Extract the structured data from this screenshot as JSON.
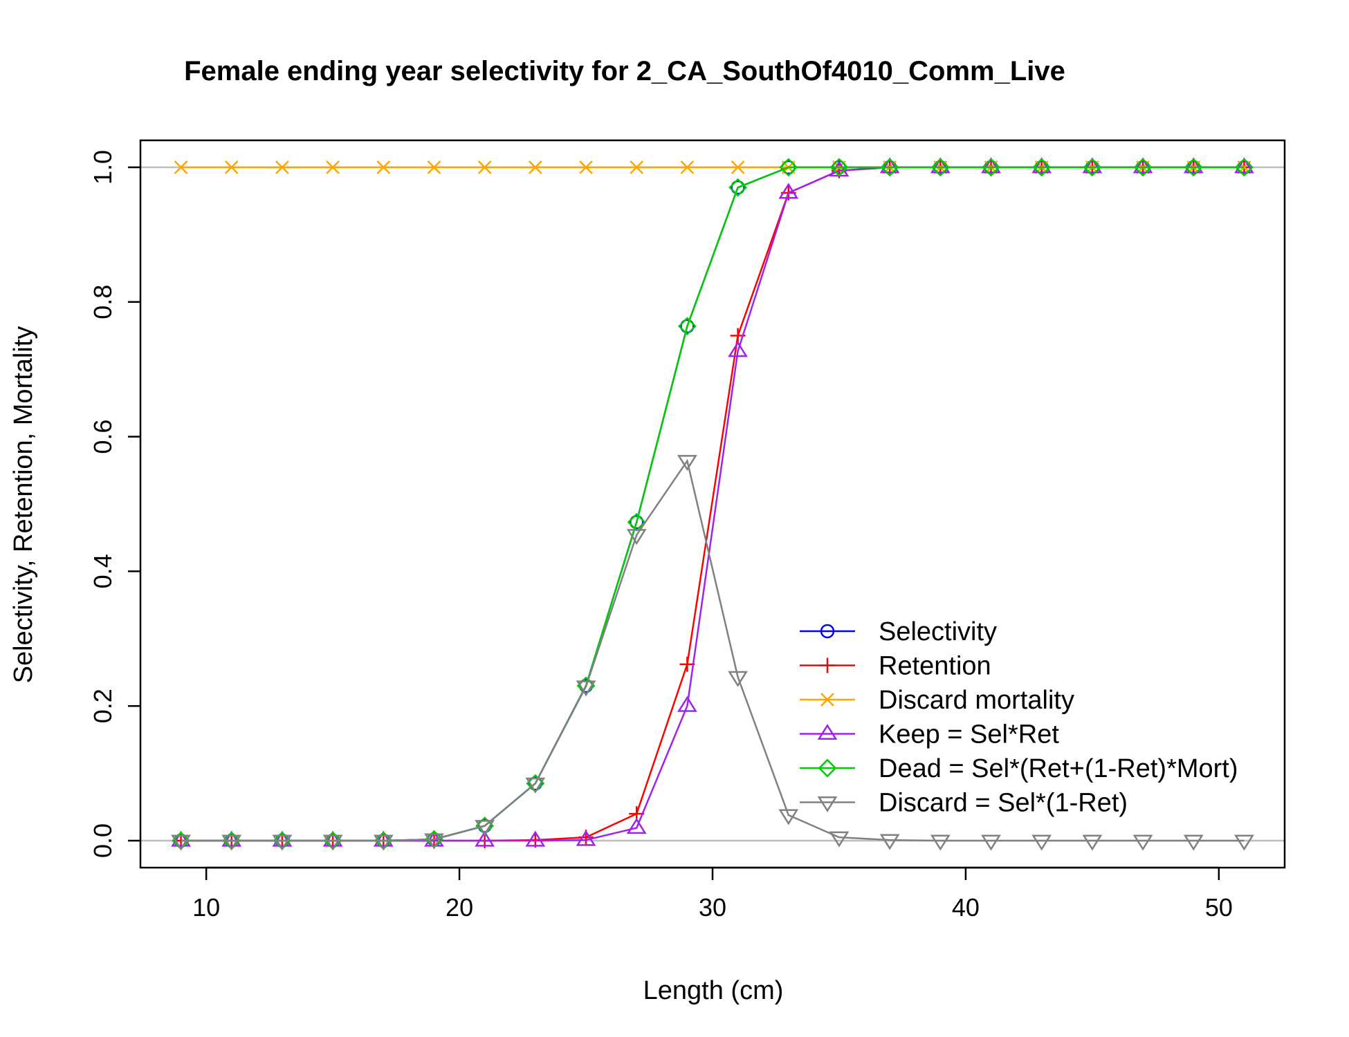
{
  "chart_data": {
    "type": "line",
    "title": "Female ending year selectivity for 2_CA_SouthOf4010_Comm_Live",
    "xlabel": "Length (cm)",
    "ylabel": "Selectivity, Retention, Mortality",
    "xlim": [
      7.4,
      52.6
    ],
    "ylim": [
      -0.04,
      1.04
    ],
    "x_ticks": [
      10,
      20,
      30,
      40,
      50
    ],
    "y_ticks": [
      0.0,
      0.2,
      0.4,
      0.6,
      0.8,
      1.0
    ],
    "x_tick_labels": [
      "10",
      "20",
      "30",
      "40",
      "50"
    ],
    "y_tick_labels": [
      "0.0",
      "0.2",
      "0.4",
      "0.6",
      "0.8",
      "1.0"
    ],
    "reference_lines": [
      0,
      1
    ],
    "legend_position": "bottom-right",
    "x": [
      9,
      11,
      13,
      15,
      17,
      19,
      21,
      23,
      25,
      27,
      29,
      31,
      33,
      35,
      37,
      39,
      41,
      43,
      45,
      47,
      49,
      51
    ],
    "series": [
      {
        "name": "Selectivity",
        "color": "#0000ff",
        "marker": "circle",
        "values": [
          0,
          0,
          0,
          0,
          0,
          0.002,
          0.022,
          0.085,
          0.23,
          0.473,
          0.764,
          0.97,
          1,
          1,
          1,
          1,
          1,
          1,
          1,
          1,
          1,
          1
        ]
      },
      {
        "name": "Retention",
        "color": "#ff0000",
        "marker": "plus",
        "values": [
          0,
          0,
          0,
          0,
          0,
          0,
          0,
          0.001,
          0.005,
          0.04,
          0.262,
          0.75,
          0.962,
          0.995,
          1,
          1,
          1,
          1,
          1,
          1,
          1,
          1
        ]
      },
      {
        "name": "Discard mortality",
        "color": "#ffa500",
        "marker": "x",
        "values": [
          1,
          1,
          1,
          1,
          1,
          1,
          1,
          1,
          1,
          1,
          1,
          1,
          1,
          1,
          1,
          1,
          1,
          1,
          1,
          1,
          1,
          1
        ]
      },
      {
        "name": "Keep = Sel*Ret",
        "color": "#a020f0",
        "marker": "triangle-up",
        "values": [
          0,
          0,
          0,
          0,
          0,
          0,
          0,
          0,
          0.001,
          0.019,
          0.2,
          0.727,
          0.962,
          0.995,
          1,
          1,
          1,
          1,
          1,
          1,
          1,
          1
        ]
      },
      {
        "name": "Dead = Sel*(Ret+(1-Ret)*Mort)",
        "color": "#00cd00",
        "marker": "diamond",
        "values": [
          0,
          0,
          0,
          0,
          0,
          0.002,
          0.022,
          0.085,
          0.23,
          0.473,
          0.764,
          0.97,
          1,
          1,
          1,
          1,
          1,
          1,
          1,
          1,
          1,
          1
        ]
      },
      {
        "name": "Discard = Sel*(1-Ret)",
        "color": "#808080",
        "marker": "triangle-down",
        "values": [
          0,
          0,
          0,
          0,
          0,
          0.002,
          0.022,
          0.085,
          0.229,
          0.454,
          0.564,
          0.243,
          0.038,
          0.005,
          0.001,
          0,
          0,
          0,
          0,
          0,
          0,
          0
        ]
      }
    ]
  }
}
